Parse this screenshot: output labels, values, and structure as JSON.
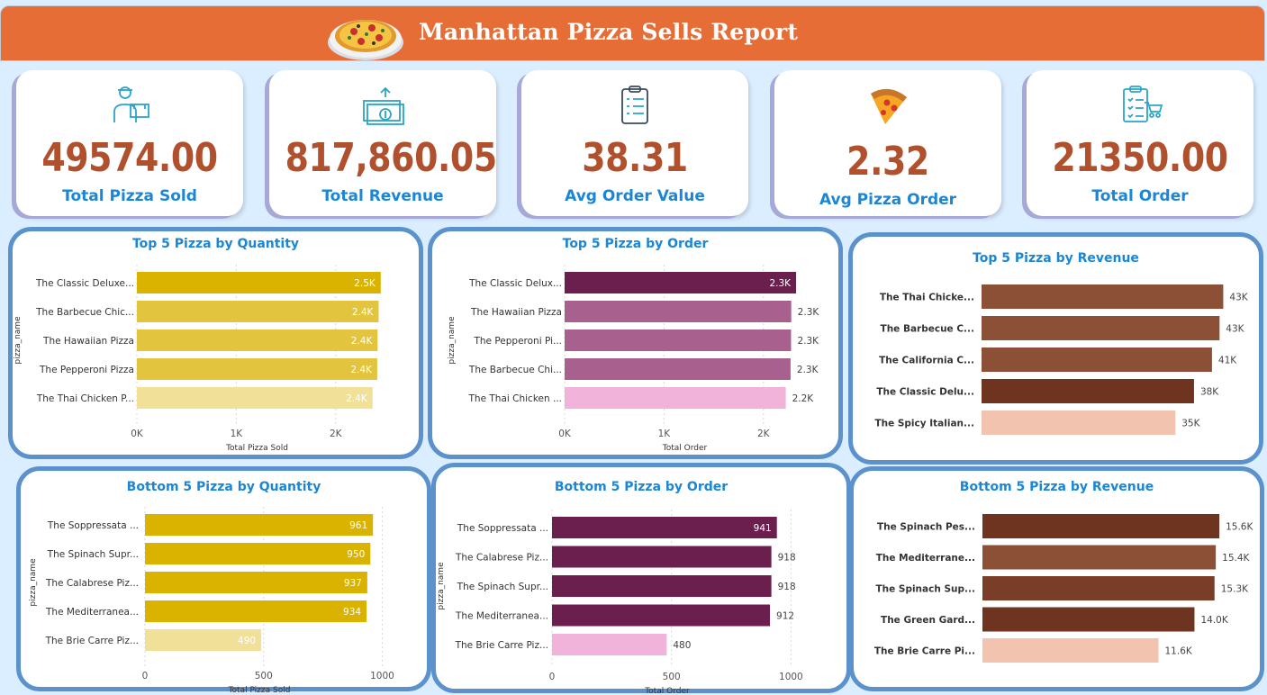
{
  "header": {
    "title": "Manhattan Pizza Sells Report"
  },
  "kpis": [
    {
      "value": "49574.00",
      "label": "Total Pizza Sold",
      "icon": "delivery-person-icon"
    },
    {
      "value": "817,860.05",
      "label": "Total Revenue",
      "icon": "money-icon"
    },
    {
      "value": "38.31",
      "label": "Avg Order Value",
      "icon": "clipboard-icon"
    },
    {
      "value": "2.32",
      "label": "Avg Pizza Order",
      "icon": "pizza-slice-icon"
    },
    {
      "value": "21350.00",
      "label": "Total Order",
      "icon": "order-list-icon"
    }
  ],
  "colors": {
    "header": "#e76d37",
    "kpi_value": "#b0502c",
    "kpi_label": "#1b86d6",
    "panel_border": "#5b92cc"
  },
  "chart_data": [
    {
      "type": "bar",
      "orientation": "horizontal",
      "title": "Top 5 Pizza by Quantity",
      "xlabel": "Total Pizza Sold",
      "ylabel": "pizza_name",
      "categories": [
        "The Classic Deluxe...",
        "The Barbecue Chic...",
        "The Hawaiian Pizza",
        "The Pepperoni Pizza",
        "The Thai Chicken P..."
      ],
      "values": [
        2453,
        2432,
        2422,
        2418,
        2371
      ],
      "labels": [
        "2.5K",
        "2.4K",
        "2.4K",
        "2.4K",
        "2.4K"
      ],
      "xticks": [
        0,
        1000,
        2000
      ],
      "xtick_labels": [
        "0K",
        "1K",
        "2K"
      ],
      "xlim": [
        0,
        2600
      ],
      "colors": [
        "#d9b300",
        "#e2c43e",
        "#e2c43e",
        "#e2c43e",
        "#f0e098"
      ]
    },
    {
      "type": "bar",
      "orientation": "horizontal",
      "title": "Top 5 Pizza by Order",
      "xlabel": "Total Order",
      "ylabel": "pizza_name",
      "categories": [
        "The Classic Delux...",
        "The Hawaiian Pizza",
        "The Pepperoni Pi...",
        "The Barbecue Chi...",
        "The Thai Chicken ..."
      ],
      "values": [
        2329,
        2280,
        2278,
        2273,
        2225
      ],
      "labels": [
        "2.3K",
        "2.3K",
        "2.3K",
        "2.3K",
        "2.2K"
      ],
      "xticks": [
        0,
        1000,
        2000
      ],
      "xtick_labels": [
        "0K",
        "1K",
        "2K"
      ],
      "xlim": [
        0,
        2600
      ],
      "colors": [
        "#6b1f4f",
        "#a8608e",
        "#a8608e",
        "#a8608e",
        "#f1b3da"
      ]
    },
    {
      "type": "bar",
      "orientation": "horizontal",
      "title": "Top 5 Pizza by Revenue",
      "xlabel": "",
      "ylabel": "",
      "categories": [
        "The Thai Chicke...",
        "The Barbecue C...",
        "The California C...",
        "The Classic Delu...",
        "The Spicy Italian..."
      ],
      "values": [
        43434,
        42768,
        41410,
        38180,
        34831
      ],
      "labels": [
        "43K",
        "43K",
        "41K",
        "38K",
        "35K"
      ],
      "xlim": [
        0,
        44500
      ],
      "colors": [
        "#8c5037",
        "#8c5037",
        "#8c5037",
        "#6e3420",
        "#f2c4b0"
      ]
    },
    {
      "type": "bar",
      "orientation": "horizontal",
      "title": "Bottom 5 Pizza by Quantity",
      "xlabel": "Total Pizza Sold",
      "ylabel": "pizza_name",
      "categories": [
        "The Soppressata ...",
        "The Spinach Supr...",
        "The Calabrese Piz...",
        "The Mediterranea...",
        "The Brie Carre Piz..."
      ],
      "values": [
        961,
        950,
        937,
        934,
        490
      ],
      "labels": [
        "961",
        "950",
        "937",
        "934",
        "490"
      ],
      "xticks": [
        0,
        500,
        1000
      ],
      "xtick_labels": [
        "0",
        "500",
        "1000"
      ],
      "xlim": [
        0,
        1040
      ],
      "colors": [
        "#d9b300",
        "#d9b300",
        "#d9b300",
        "#d9b300",
        "#f0e098"
      ]
    },
    {
      "type": "bar",
      "orientation": "horizontal",
      "title": "Bottom 5 Pizza by Order",
      "xlabel": "Total Order",
      "ylabel": "pizza_name",
      "categories": [
        "The Soppressata ...",
        "The Calabrese Piz...",
        "The Spinach Supr...",
        "The Mediterranea...",
        "The Brie Carre Piz..."
      ],
      "values": [
        941,
        918,
        918,
        912,
        480
      ],
      "labels": [
        "941",
        "918",
        "918",
        "912",
        "480"
      ],
      "xticks": [
        0,
        500,
        1000
      ],
      "xtick_labels": [
        "0",
        "500",
        "1000"
      ],
      "xlim": [
        0,
        1040
      ],
      "colors": [
        "#6b1f4f",
        "#6b1f4f",
        "#6b1f4f",
        "#6b1f4f",
        "#f1b3da"
      ]
    },
    {
      "type": "bar",
      "orientation": "horizontal",
      "title": "Bottom 5 Pizza by Revenue",
      "xlabel": "",
      "ylabel": "",
      "categories": [
        "The Spinach Pes...",
        "The Mediterrane...",
        "The Spinach Sup...",
        "The Green Gard...",
        "The Brie Carre Pi..."
      ],
      "values": [
        15596,
        15360,
        15278,
        13956,
        11588
      ],
      "labels": [
        "15.6K",
        "15.4K",
        "15.3K",
        "14.0K",
        "11.6K"
      ],
      "xlim": [
        0,
        16300
      ],
      "colors": [
        "#6e3420",
        "#8c5037",
        "#7a3d28",
        "#6e3420",
        "#f2c4b0"
      ]
    }
  ]
}
